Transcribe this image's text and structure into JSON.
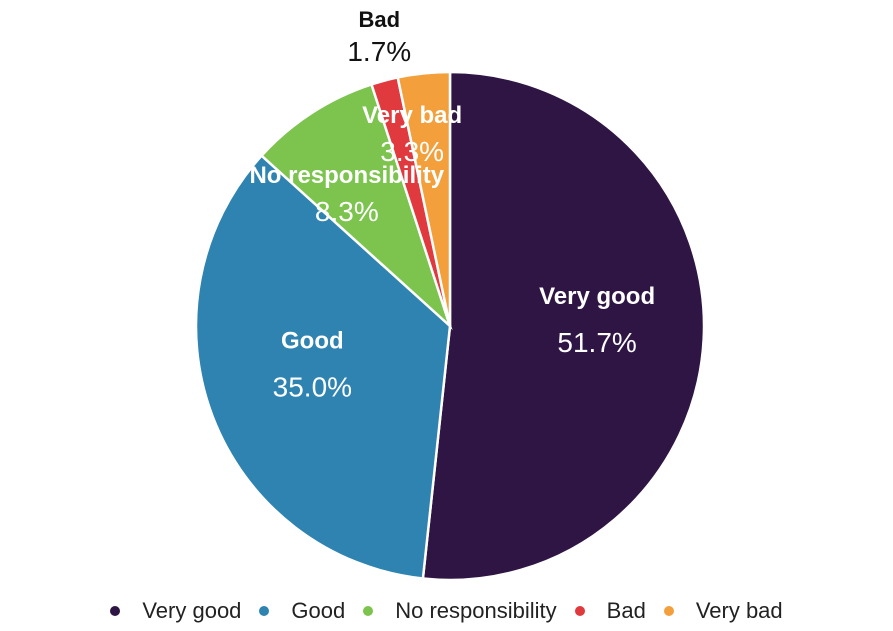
{
  "chart_data": {
    "type": "pie",
    "categories": [
      "Very good",
      "Good",
      "No responsibility",
      "Bad",
      "Very bad"
    ],
    "values": [
      51.7,
      35.0,
      8.3,
      1.7,
      3.3
    ],
    "labels": [
      "51.7%",
      "35.0%",
      "8.3%",
      "1.7%",
      "3.3%"
    ],
    "colors": [
      "#2e1544",
      "#2e83b0",
      "#7cc44e",
      "#e03a3e",
      "#f3a03c"
    ],
    "start_angle_deg": 0,
    "direction": "clockwise",
    "legend_position": "bottom"
  }
}
